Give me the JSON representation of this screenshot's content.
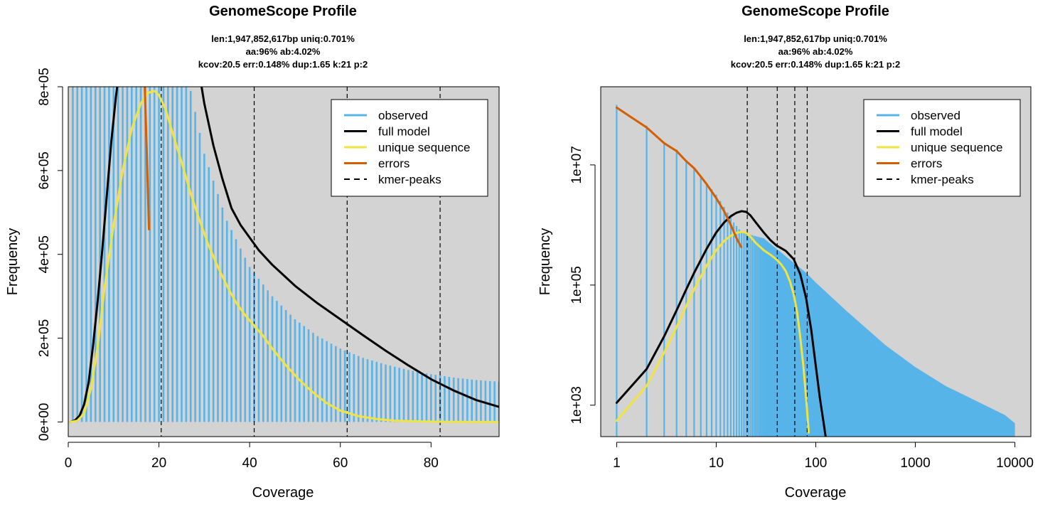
{
  "chart_data": [
    {
      "type": "line",
      "title": "GenomeScope Profile",
      "subtitle": [
        "len:1,947,852,617bp uniq:0.701%",
        "aa:96% ab:4.02%",
        "kcov:20.5 err:0.148%  dup:1.65  k:21 p:2"
      ],
      "xlabel": "Coverage",
      "ylabel": "Frequency",
      "xscale": "linear",
      "yscale": "linear",
      "xlim": [
        0,
        95
      ],
      "ylim": [
        -35000,
        800000
      ],
      "xticks": [
        0,
        20,
        40,
        60,
        80
      ],
      "xtick_labels": [
        "0",
        "20",
        "40",
        "60",
        "80"
      ],
      "yticks": [
        0,
        200000,
        400000,
        600000,
        800000
      ],
      "ytick_labels": [
        "0e+00",
        "2e+05",
        "4e+05",
        "6e+05",
        "8e+05"
      ],
      "background": "#d3d3d3",
      "legend_position": "top-right",
      "kmer_peaks": [
        20.5,
        41,
        61.5,
        82
      ],
      "series": [
        {
          "name": "observed",
          "style": "bars",
          "color": "#56b4e9",
          "x": [
            1,
            95
          ],
          "y_points": [
            [
              1,
              50000000
            ],
            [
              26,
              840000
            ],
            [
              27,
              790000
            ],
            [
              30,
              640000
            ],
            [
              35,
              480000
            ],
            [
              40,
              370000
            ],
            [
              45,
              300000
            ],
            [
              50,
              245000
            ],
            [
              55,
              205000
            ],
            [
              60,
              175000
            ],
            [
              65,
              153000
            ],
            [
              70,
              137000
            ],
            [
              75,
              124000
            ],
            [
              80,
              114000
            ],
            [
              85,
              106000
            ],
            [
              90,
              100000
            ],
            [
              95,
              96000
            ]
          ]
        },
        {
          "name": "full model",
          "style": "line",
          "color": "#000000",
          "points": [
            [
              0.5,
              0
            ],
            [
              1.5,
              4000
            ],
            [
              2.5,
              15000
            ],
            [
              3.5,
              42000
            ],
            [
              4.5,
              95000
            ],
            [
              5.5,
              185000
            ],
            [
              6.5,
              290000
            ],
            [
              7.5,
              410000
            ],
            [
              8.5,
              540000
            ],
            [
              9.5,
              670000
            ],
            [
              10.5,
              775000
            ],
            [
              11.5,
              860000
            ],
            [
              28.5,
              860000
            ],
            [
              30,
              760000
            ],
            [
              32,
              660000
            ],
            [
              34,
              580000
            ],
            [
              36,
              510000
            ],
            [
              38,
              470000
            ],
            [
              40,
              440000
            ],
            [
              42,
              410000
            ],
            [
              45,
              375000
            ],
            [
              50,
              325000
            ],
            [
              55,
              283000
            ],
            [
              60,
              245000
            ],
            [
              65,
              207000
            ],
            [
              70,
              170000
            ],
            [
              75,
              135000
            ],
            [
              80,
              102000
            ],
            [
              85,
              75000
            ],
            [
              90,
              52000
            ],
            [
              95,
              36000
            ]
          ]
        },
        {
          "name": "unique sequence",
          "style": "line",
          "color": "#f0e442",
          "points": [
            [
              0.5,
              0
            ],
            [
              2,
              3000
            ],
            [
              3.5,
              20000
            ],
            [
              5,
              80000
            ],
            [
              6.5,
              180000
            ],
            [
              8,
              320000
            ],
            [
              10,
              470000
            ],
            [
              12,
              600000
            ],
            [
              14,
              700000
            ],
            [
              16,
              760000
            ],
            [
              17.5,
              785000
            ],
            [
              19,
              790000
            ],
            [
              20,
              780000
            ],
            [
              21.5,
              745000
            ],
            [
              23,
              690000
            ],
            [
              25,
              620000
            ],
            [
              27,
              545000
            ],
            [
              29,
              480000
            ],
            [
              31,
              420000
            ],
            [
              33,
              370000
            ],
            [
              35,
              325000
            ],
            [
              37,
              285000
            ],
            [
              39,
              255000
            ],
            [
              41,
              230000
            ],
            [
              43,
              205000
            ],
            [
              45,
              175000
            ],
            [
              48,
              135000
            ],
            [
              51,
              100000
            ],
            [
              54,
              70000
            ],
            [
              57,
              45000
            ],
            [
              60,
              27000
            ],
            [
              64,
              14000
            ],
            [
              68,
              7000
            ],
            [
              72,
              3000
            ],
            [
              78,
              1000
            ],
            [
              85,
              200
            ],
            [
              95,
              0
            ]
          ]
        },
        {
          "name": "errors",
          "style": "line",
          "color": "#d55e00",
          "points": [
            [
              16.7,
              860000
            ],
            [
              17.3,
              650000
            ],
            [
              17.8,
              460000
            ]
          ]
        },
        {
          "name": "kmer-peaks",
          "style": "dashed-vertical",
          "color": "#000000"
        }
      ],
      "legend": [
        "observed",
        "full model",
        "unique sequence",
        "errors",
        "kmer-peaks"
      ]
    },
    {
      "type": "line",
      "title": "GenomeScope Profile",
      "subtitle": [
        "len:1,947,852,617bp uniq:0.701%",
        "aa:96% ab:4.02%",
        "kcov:20.5 err:0.148%  dup:1.65  k:21 p:2"
      ],
      "xlabel": "Coverage",
      "ylabel": "Frequency",
      "xscale": "log",
      "yscale": "log",
      "xlim": [
        1,
        10000
      ],
      "ylim": [
        300,
        200000000
      ],
      "xticks": [
        1,
        10,
        100,
        1000,
        10000
      ],
      "xtick_labels": [
        "1",
        "10",
        "100",
        "1000",
        "10000"
      ],
      "yticks": [
        1000,
        100000,
        10000000
      ],
      "ytick_labels": [
        "1e+03",
        "1e+05",
        "1e+07"
      ],
      "background": "#d3d3d3",
      "legend_position": "top-right",
      "kmer_peaks": [
        20.5,
        41,
        61.5,
        82
      ],
      "series": [
        {
          "name": "observed",
          "style": "bars",
          "color": "#56b4e9",
          "x": [
            1,
            10000
          ],
          "y_points": [
            [
              1,
              100000000
            ],
            [
              2,
              45000000
            ],
            [
              3,
              24000000
            ],
            [
              4,
              18000000
            ],
            [
              5,
              12000000
            ],
            [
              6,
              9000000
            ],
            [
              7,
              6500000
            ],
            [
              8,
              5000000
            ],
            [
              10,
              3200000
            ],
            [
              12,
              2000000
            ],
            [
              15,
              1100000
            ],
            [
              18,
              750000
            ],
            [
              21,
              700000
            ],
            [
              30,
              600000
            ],
            [
              50,
              300000
            ],
            [
              80,
              160000
            ],
            [
              100,
              110000
            ],
            [
              200,
              38000
            ],
            [
              500,
              10000
            ],
            [
              1000,
              4300
            ],
            [
              2000,
              2100
            ],
            [
              5000,
              1000
            ],
            [
              8000,
              680
            ],
            [
              10000,
              500
            ]
          ]
        },
        {
          "name": "full model",
          "style": "line",
          "color": "#000000",
          "points": [
            [
              1,
              1100
            ],
            [
              2,
              4000
            ],
            [
              3,
              14000
            ],
            [
              4,
              38000
            ],
            [
              5,
              85000
            ],
            [
              6,
              160000
            ],
            [
              8,
              400000
            ],
            [
              10,
              750000
            ],
            [
              12,
              1100000
            ],
            [
              14,
              1400000
            ],
            [
              16,
              1600000
            ],
            [
              18,
              1700000
            ],
            [
              20,
              1650000
            ],
            [
              22,
              1450000
            ],
            [
              25,
              1100000
            ],
            [
              30,
              750000
            ],
            [
              35,
              560000
            ],
            [
              40,
              460000
            ],
            [
              45,
              410000
            ],
            [
              50,
              370000
            ],
            [
              60,
              270000
            ],
            [
              70,
              150000
            ],
            [
              80,
              60000
            ],
            [
              90,
              18000
            ],
            [
              100,
              4500
            ],
            [
              110,
              1300
            ],
            [
              120,
              500
            ],
            [
              130,
              200
            ]
          ]
        },
        {
          "name": "unique sequence",
          "style": "line",
          "color": "#f0e442",
          "points": [
            [
              1,
              550
            ],
            [
              2,
              2100
            ],
            [
              3,
              7500
            ],
            [
              4,
              20000
            ],
            [
              5,
              45000
            ],
            [
              6,
              85000
            ],
            [
              8,
              210000
            ],
            [
              10,
              380000
            ],
            [
              12,
              540000
            ],
            [
              14,
              660000
            ],
            [
              16,
              740000
            ],
            [
              18,
              770000
            ],
            [
              20,
              740000
            ],
            [
              22,
              640000
            ],
            [
              25,
              500000
            ],
            [
              30,
              380000
            ],
            [
              35,
              320000
            ],
            [
              40,
              270000
            ],
            [
              45,
              220000
            ],
            [
              50,
              170000
            ],
            [
              55,
              115000
            ],
            [
              60,
              70000
            ],
            [
              65,
              35000
            ],
            [
              70,
              13000
            ],
            [
              75,
              4500
            ],
            [
              80,
              1300
            ],
            [
              85,
              350
            ]
          ]
        },
        {
          "name": "errors",
          "style": "line",
          "color": "#d55e00",
          "points": [
            [
              1,
              90000000
            ],
            [
              2,
              42000000
            ],
            [
              3,
              23000000
            ],
            [
              4,
              17000000
            ],
            [
              5,
              11500000
            ],
            [
              6,
              8800000
            ],
            [
              7,
              6400000
            ],
            [
              8,
              4800000
            ],
            [
              10,
              2800000
            ],
            [
              12,
              1700000
            ],
            [
              14,
              1000000
            ],
            [
              16,
              600000
            ],
            [
              17.8,
              430000
            ]
          ]
        },
        {
          "name": "kmer-peaks",
          "style": "dashed-vertical",
          "color": "#000000"
        }
      ],
      "legend": [
        "observed",
        "full model",
        "unique sequence",
        "errors",
        "kmer-peaks"
      ]
    }
  ]
}
